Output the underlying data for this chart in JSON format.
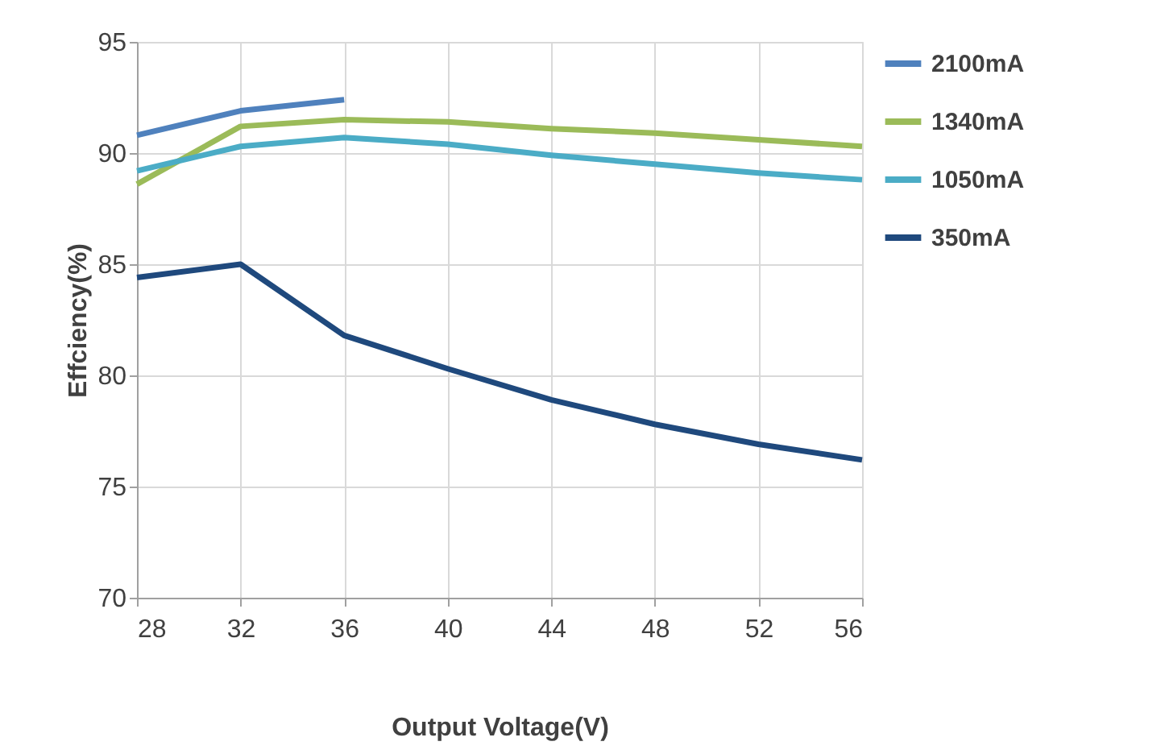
{
  "chart_data": {
    "type": "line",
    "xlabel": "Output Voltage(V)",
    "ylabel": "Effciency(%)",
    "x": [
      28,
      32,
      36,
      40,
      44,
      48,
      52,
      56
    ],
    "series": [
      {
        "name": "2100mA",
        "color": "#4f81bd",
        "values": [
          90.8,
          91.9,
          92.4,
          null,
          null,
          null,
          null,
          null
        ]
      },
      {
        "name": "1340mA",
        "color": "#9bbb59",
        "values": [
          88.6,
          91.2,
          91.5,
          91.4,
          91.1,
          90.9,
          90.6,
          90.3
        ]
      },
      {
        "name": "1050mA",
        "color": "#4bacc6",
        "values": [
          89.2,
          90.3,
          90.7,
          90.4,
          89.9,
          89.5,
          89.1,
          88.8
        ]
      },
      {
        "name": "350mA",
        "color": "#1f497d",
        "values": [
          84.4,
          85.0,
          81.8,
          80.3,
          78.9,
          77.8,
          76.9,
          76.2
        ]
      }
    ],
    "xlim": [
      28,
      56
    ],
    "xticks": [
      28,
      32,
      36,
      40,
      44,
      48,
      52,
      56
    ],
    "ylim": [
      70,
      95
    ],
    "yticks": [
      70,
      75,
      80,
      85,
      90,
      95
    ],
    "grid": true,
    "legend": "right",
    "marker": "none",
    "line_style": "solid"
  }
}
